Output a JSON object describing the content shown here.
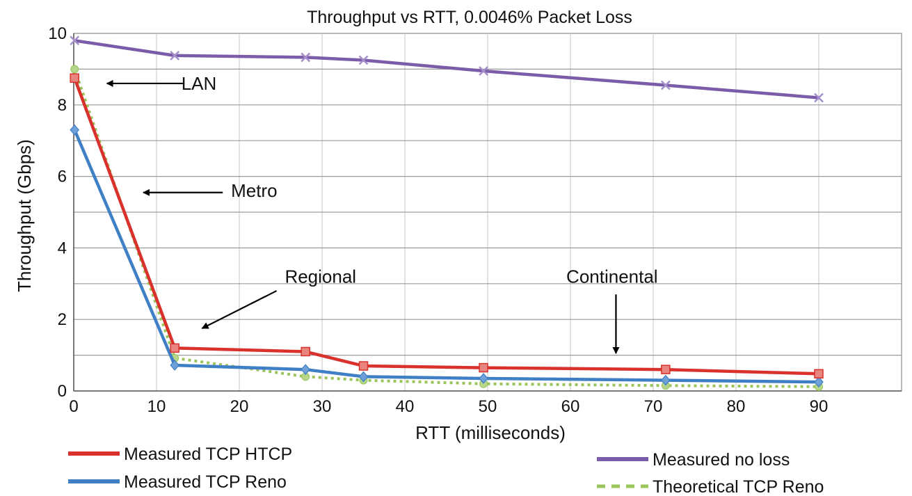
{
  "chart_data": {
    "type": "line",
    "title": "Throughput vs RTT, 0.0046% Packet Loss",
    "xlabel": "RTT (milliseconds)",
    "ylabel": "Throughput (Gbps)",
    "xlim": [
      0,
      100
    ],
    "ylim": [
      0,
      10
    ],
    "x_ticks": [
      0,
      10,
      20,
      30,
      40,
      50,
      60,
      70,
      80,
      90
    ],
    "y_ticks": [
      0,
      2,
      4,
      6,
      8,
      10
    ],
    "grid": true,
    "legend_placement": "bottom",
    "series": [
      {
        "name": "Measured TCP HTCP",
        "color": "#d9312b",
        "marker": "square",
        "dash": false,
        "x": [
          0.1,
          12.2,
          28,
          35,
          49.5,
          71.5,
          90
        ],
        "y": [
          8.75,
          1.2,
          1.1,
          0.7,
          0.65,
          0.6,
          0.48
        ]
      },
      {
        "name": "Measured TCP Reno",
        "color": "#3f7fc6",
        "marker": "diamond",
        "dash": false,
        "x": [
          0.1,
          12.2,
          28,
          35,
          49.5,
          71.5,
          90
        ],
        "y": [
          7.3,
          0.72,
          0.6,
          0.4,
          0.35,
          0.3,
          0.25
        ]
      },
      {
        "name": "Measured no loss",
        "color": "#7a5ca8",
        "marker": "x",
        "dash": false,
        "x": [
          0.1,
          12.2,
          28,
          35,
          49.5,
          71.5,
          90
        ],
        "y": [
          9.8,
          9.38,
          9.33,
          9.25,
          8.95,
          8.55,
          8.2
        ]
      },
      {
        "name": "Theoretical TCP Reno",
        "color": "#9bc55a",
        "marker": "circle",
        "dash": true,
        "x": [
          0.1,
          12.2,
          28,
          35,
          49.5,
          71.5,
          90
        ],
        "y": [
          9.0,
          0.92,
          0.4,
          0.3,
          0.2,
          0.15,
          0.12
        ]
      }
    ],
    "annotations": [
      {
        "text": "LAN",
        "text_x": 13,
        "text_y": 8.6,
        "arrow_from": [
          13.3,
          8.6
        ],
        "arrow_to": [
          4,
          8.6
        ]
      },
      {
        "text": "Metro",
        "text_x": 19,
        "text_y": 5.6,
        "arrow_from": [
          18,
          5.55
        ],
        "arrow_to": [
          8.4,
          5.55
        ]
      },
      {
        "text": "Regional",
        "text_x": 25.5,
        "text_y": 3.2,
        "arrow_from": [
          24.5,
          2.8
        ],
        "arrow_to": [
          15.5,
          1.75
        ]
      },
      {
        "text": "Continental",
        "text_x": 59.5,
        "text_y": 3.2,
        "arrow_from": [
          65.5,
          2.7
        ],
        "arrow_to": [
          65.5,
          1.05
        ]
      }
    ]
  }
}
